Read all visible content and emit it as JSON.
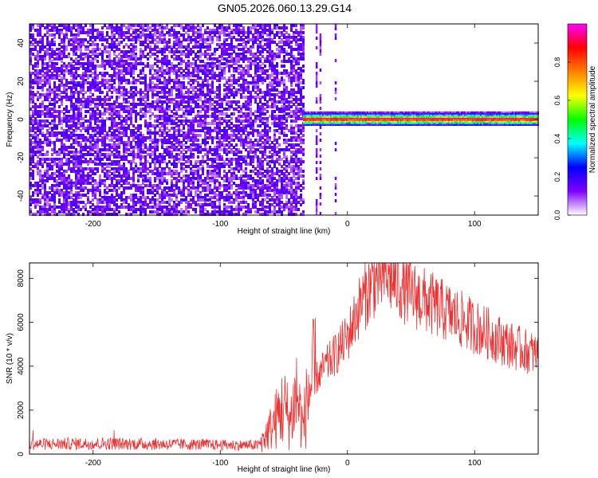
{
  "title": "GN05.2026.060.13.29.G14",
  "chart_data": [
    {
      "type": "heatmap",
      "xlabel": "Height of straight line (km)",
      "ylabel": "Frequency (Hz)",
      "xlim": [
        -250,
        150
      ],
      "ylim": [
        -50,
        50
      ],
      "x_ticks": [
        -200,
        -100,
        0,
        100
      ],
      "y_ticks": [
        -40,
        -20,
        0,
        20,
        40
      ],
      "colorbar": {
        "label": "Normalized spectral amplitude",
        "range": [
          0,
          1
        ],
        "ticks": [
          0.0,
          0.2,
          0.4,
          0.6,
          0.8
        ],
        "colormap": [
          "#ffffff",
          "#8000ff",
          "#0000ff",
          "#00ffff",
          "#00ff00",
          "#ffff00",
          "#ff8000",
          "#ff0000",
          "#ff00ff"
        ]
      },
      "regions": [
        {
          "x_range": [
            -250,
            -35
          ],
          "description_level": 0.25,
          "frequency_range": [
            -50,
            50
          ]
        },
        {
          "x_range": [
            -35,
            150
          ],
          "frequency_range": [
            -2,
            2
          ],
          "peak_level": 0.95
        }
      ],
      "signal_line": {
        "frequency": 0.5,
        "x_start": -35,
        "x_end": 150
      }
    },
    {
      "type": "line",
      "xlabel": "Height of straight line (km)",
      "ylabel": "SNR (10 * v/v)",
      "xlim": [
        -250,
        150
      ],
      "ylim": [
        0,
        8700
      ],
      "x_ticks": [
        -200,
        -100,
        0,
        100
      ],
      "y_ticks": [
        0,
        2000,
        4000,
        6000,
        8000
      ],
      "series": [
        {
          "color": "#f03030",
          "x": [
            -250,
            -200,
            -150,
            -100,
            -70,
            -60,
            -50,
            -45,
            -40,
            -35,
            -30,
            -20,
            -10,
            0,
            10,
            20,
            30,
            40,
            50,
            60,
            70,
            80,
            90,
            100,
            110,
            120,
            130,
            140,
            150
          ],
          "y": [
            450,
            480,
            460,
            420,
            400,
            1200,
            2200,
            1500,
            2800,
            1200,
            3000,
            3800,
            4500,
            5300,
            6800,
            7800,
            8200,
            7800,
            7300,
            7000,
            6700,
            6400,
            6100,
            5800,
            5500,
            5200,
            4900,
            4700,
            4500
          ]
        }
      ]
    }
  ]
}
